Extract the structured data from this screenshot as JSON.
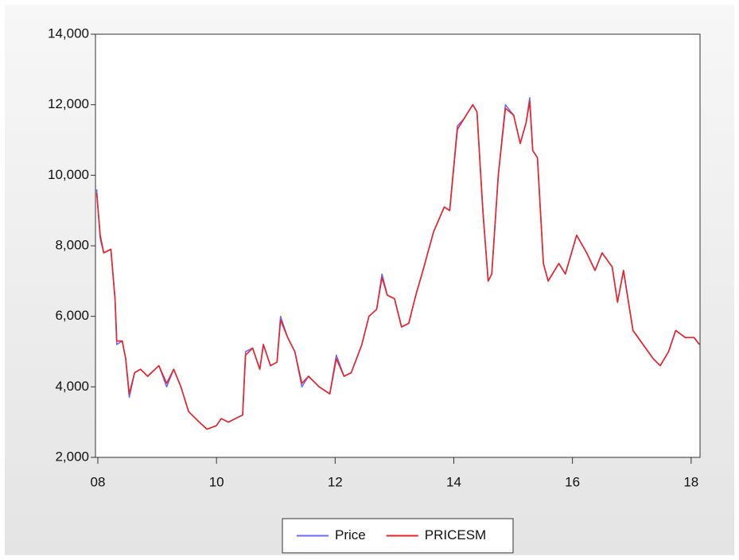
{
  "chart_data": {
    "type": "line",
    "x": [
      2007.98,
      2008.04,
      2008.1,
      2008.22,
      2008.29,
      2008.32,
      2008.41,
      2008.47,
      2008.53,
      2008.62,
      2008.72,
      2008.84,
      2009.03,
      2009.16,
      2009.28,
      2009.4,
      2009.53,
      2009.71,
      2009.84,
      2010.0,
      2010.08,
      2010.2,
      2010.32,
      2010.44,
      2010.49,
      2010.61,
      2010.73,
      2010.79,
      2010.91,
      2011.02,
      2011.08,
      2011.2,
      2011.32,
      2011.44,
      2011.55,
      2011.73,
      2011.91,
      2012.02,
      2012.15,
      2012.27,
      2012.45,
      2012.57,
      2012.7,
      2012.79,
      2012.88,
      2013.0,
      2013.12,
      2013.24,
      2013.36,
      2013.48,
      2013.66,
      2013.84,
      2013.93,
      2014.06,
      2014.17,
      2014.32,
      2014.39,
      2014.49,
      2014.58,
      2014.64,
      2014.75,
      2014.87,
      2015.01,
      2015.12,
      2015.22,
      2015.28,
      2015.33,
      2015.41,
      2015.51,
      2015.59,
      2015.77,
      2015.88,
      2016.07,
      2016.24,
      2016.38,
      2016.5,
      2016.67,
      2016.76,
      2016.86,
      2017.02,
      2017.19,
      2017.36,
      2017.48,
      2017.62,
      2017.74,
      2017.9,
      2018.05,
      2018.14
    ],
    "series": [
      {
        "name": "Price",
        "color": "#6b6bff",
        "values": [
          9600,
          8200,
          7800,
          7900,
          6500,
          5200,
          5300,
          4800,
          3700,
          4400,
          4500,
          4300,
          4600,
          4000,
          4500,
          4000,
          3300,
          3000,
          2800,
          2900,
          3100,
          3000,
          3100,
          3200,
          5000,
          5100,
          4500,
          5200,
          4600,
          4700,
          6000,
          5400,
          5000,
          4000,
          4300,
          4000,
          3800,
          4900,
          4300,
          4400,
          5200,
          6000,
          6200,
          7200,
          6600,
          6500,
          5700,
          5800,
          6600,
          7300,
          8400,
          9100,
          9000,
          11400,
          11600,
          12000,
          11800,
          9000,
          7000,
          7200,
          10000,
          12000,
          11700,
          10900,
          11500,
          12200,
          10700,
          10500,
          7500,
          7000,
          7500,
          7200,
          8300,
          7800,
          7300,
          7800,
          7400,
          6400,
          7300,
          5600,
          5200,
          4800,
          4600,
          5000,
          5600,
          5400,
          5400,
          5200
        ]
      },
      {
        "name": "PRICESM",
        "color": "#ee2222",
        "values": [
          9500,
          8300,
          7800,
          7900,
          6500,
          5300,
          5300,
          4800,
          3800,
          4400,
          4500,
          4300,
          4600,
          4100,
          4500,
          4000,
          3300,
          3000,
          2800,
          2900,
          3100,
          3000,
          3100,
          3200,
          4900,
          5100,
          4500,
          5200,
          4600,
          4700,
          5900,
          5400,
          5000,
          4100,
          4300,
          4000,
          3800,
          4800,
          4300,
          4400,
          5200,
          6000,
          6200,
          7100,
          6600,
          6500,
          5700,
          5800,
          6600,
          7300,
          8400,
          9100,
          9000,
          11300,
          11600,
          12000,
          11800,
          9000,
          7000,
          7200,
          10000,
          11900,
          11700,
          10900,
          11500,
          12100,
          10700,
          10500,
          7500,
          7000,
          7500,
          7200,
          8300,
          7800,
          7300,
          7800,
          7400,
          6400,
          7300,
          5600,
          5200,
          4800,
          4600,
          5000,
          5600,
          5400,
          5400,
          5200
        ]
      }
    ],
    "xlim": [
      2007.96,
      2018.15
    ],
    "xticks": [
      {
        "value": 2008,
        "label": "08"
      },
      {
        "value": 2010,
        "label": "10"
      },
      {
        "value": 2012,
        "label": "12"
      },
      {
        "value": 2014,
        "label": "14"
      },
      {
        "value": 2016,
        "label": "16"
      },
      {
        "value": 2018,
        "label": "18"
      }
    ],
    "ylim": [
      2000,
      14000
    ],
    "yticks": [
      {
        "value": 2000,
        "label": "2,000"
      },
      {
        "value": 4000,
        "label": "4,000"
      },
      {
        "value": 6000,
        "label": "6,000"
      },
      {
        "value": 8000,
        "label": "8,000"
      },
      {
        "value": 10000,
        "label": "10,000"
      },
      {
        "value": 12000,
        "label": "12,000"
      },
      {
        "value": 14000,
        "label": "14,000"
      }
    ],
    "legend": "bottom"
  }
}
